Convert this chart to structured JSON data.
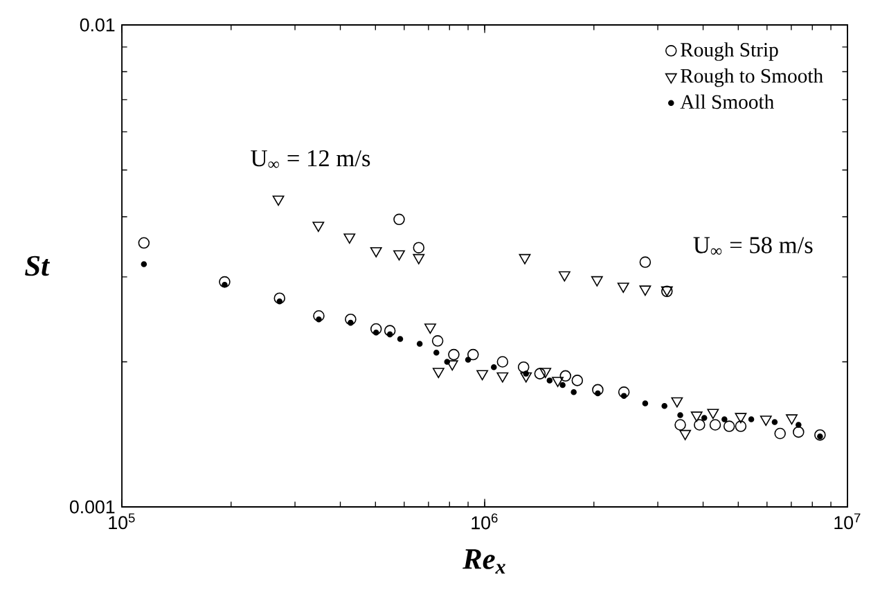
{
  "chart_data": {
    "type": "scatter",
    "xlabel": "Re$_{x}$",
    "ylabel": "St",
    "log": "xy",
    "grid": false,
    "legend": "top right",
    "xlim": [
      100000,
      10000000
    ],
    "ylim": [
      0.001,
      0.01
    ],
    "xticks": [
      {
        "value": 100000,
        "label": "10$^{5}$"
      },
      {
        "value": 1000000,
        "label": "10$^{6}$"
      },
      {
        "value": 10000000,
        "label": "10$^{7}$"
      }
    ],
    "yticks": [
      0.001,
      0.01
    ],
    "annotations": [
      "U$_{∞}$ = 12 m/s",
      "U$_{∞}$ = 58 m/s"
    ],
    "series": [
      {
        "name": "Rough Strip",
        "color": "#000000",
        "marker": "circle",
        "x": [
          115000,
          192000,
          272000,
          349000,
          427000,
          502000,
          548000,
          581000,
          658000,
          742000,
          822000,
          929000,
          1120000,
          1280000,
          1420000,
          1670000,
          1800000,
          2050000,
          2420000,
          2770000,
          3180000,
          3460000,
          3910000,
          4320000,
          4720000,
          5080000,
          6520000,
          7330000,
          8400000
        ],
        "values": [
          0.00353,
          0.00293,
          0.00271,
          0.00249,
          0.00245,
          0.00234,
          0.00232,
          0.00395,
          0.00345,
          0.00221,
          0.00207,
          0.00207,
          0.002,
          0.00195,
          0.00189,
          0.00187,
          0.00183,
          0.00175,
          0.00173,
          0.00322,
          0.0028,
          0.00148,
          0.00148,
          0.00148,
          0.00147,
          0.00147,
          0.00142,
          0.00143,
          0.00141
        ]
      },
      {
        "name": "Rough to Smooth",
        "color": "#000000",
        "marker": "triangle",
        "x": [
          270000,
          348000,
          424000,
          502000,
          581000,
          658000,
          708000,
          746000,
          814000,
          985000,
          1120000,
          1290000,
          1300000,
          1470000,
          1590000,
          1660000,
          2040000,
          2410000,
          2770000,
          3180000,
          3390000,
          3570000,
          3840000,
          4260000,
          5080000,
          5960000,
          7020000
        ],
        "values": [
          0.00435,
          0.00384,
          0.00363,
          0.0034,
          0.00335,
          0.00329,
          0.00236,
          0.00191,
          0.00198,
          0.00189,
          0.00187,
          0.00329,
          0.00187,
          0.00191,
          0.00183,
          0.00303,
          0.00296,
          0.00287,
          0.00283,
          0.00282,
          0.00166,
          0.00142,
          0.00155,
          0.00157,
          0.00154,
          0.00152,
          0.00153
        ]
      },
      {
        "name": "All Smooth",
        "color": "#000000",
        "marker": "circle",
        "x": [
          115000,
          192000,
          272000,
          349000,
          427000,
          502000,
          548000,
          585000,
          662000,
          736000,
          788000,
          900000,
          1060000,
          1300000,
          1510000,
          1640000,
          1760000,
          2050000,
          2420000,
          2770000,
          3130000,
          3460000,
          4030000,
          4580000,
          5430000,
          6300000,
          7330000,
          8400000
        ],
        "values": [
          0.00319,
          0.00289,
          0.00267,
          0.00245,
          0.00241,
          0.0023,
          0.00228,
          0.00223,
          0.00218,
          0.00209,
          0.002,
          0.00202,
          0.00195,
          0.00189,
          0.00183,
          0.00179,
          0.00173,
          0.00172,
          0.0017,
          0.00164,
          0.00162,
          0.00155,
          0.00153,
          0.00152,
          0.00152,
          0.0015,
          0.00148,
          0.0014
        ]
      }
    ]
  }
}
